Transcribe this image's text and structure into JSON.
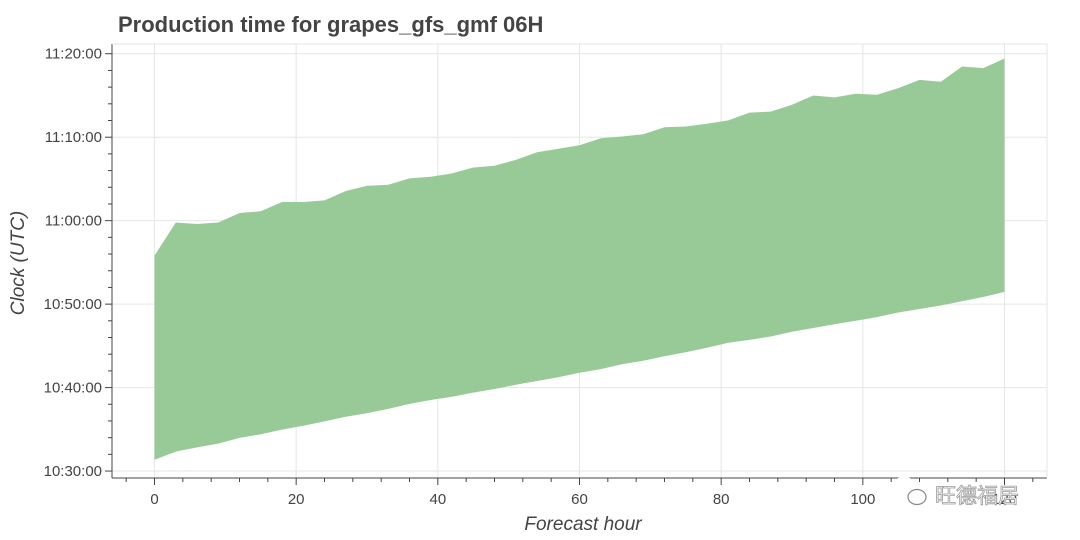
{
  "chart_data": {
    "type": "area",
    "title": "Production time for grapes_gfs_gmf 06H",
    "xlabel": "Forecast hour",
    "ylabel": "Clock (UTC)",
    "xlim": [
      -6,
      126
    ],
    "ylim": [
      "10:29:10",
      "11:21:10"
    ],
    "x_ticks": [
      0,
      20,
      40,
      60,
      80,
      100,
      120
    ],
    "x_tick_labels": [
      "0",
      "20",
      "40",
      "60",
      "80",
      "100",
      "120"
    ],
    "y_ticks": [
      "10:30:00",
      "10:40:00",
      "10:50:00",
      "11:00:00",
      "11:10:00",
      "11:20:00"
    ],
    "y_tick_labels": [
      "10:30:00",
      "10:40:00",
      "10:50:00",
      "11:00:00",
      "11:10:00",
      "11:20:00"
    ],
    "grid": true,
    "fill_color": "#98ca98",
    "series": [
      {
        "x": [
          0,
          3,
          6,
          9,
          12,
          15,
          18,
          21,
          24,
          27,
          30,
          33,
          36,
          39,
          42,
          45,
          48,
          51,
          54,
          57,
          60,
          63,
          66,
          69,
          72,
          75,
          78,
          81,
          84,
          87,
          90,
          93,
          96,
          99,
          102,
          105,
          108,
          111,
          114,
          117,
          120
        ],
        "upper": [
          "10:55:49",
          "10:59:47",
          "10:59:36",
          "10:59:47",
          "11:00:55",
          "11:01:07",
          "11:02:14",
          "11:02:14",
          "11:02:26",
          "11:03:33",
          "11:04:11",
          "11:04:18",
          "11:05:04",
          "11:05:15",
          "11:05:40",
          "11:06:22",
          "11:06:35",
          "11:07:17",
          "11:08:12",
          "11:08:37",
          "11:09:02",
          "11:09:52",
          "11:10:05",
          "11:10:21",
          "11:11:11",
          "11:11:17",
          "11:11:37",
          "11:12:01",
          "11:12:57",
          "11:13:04",
          "11:13:53",
          "11:15:00",
          "11:14:46",
          "11:15:12",
          "11:15:05",
          "11:15:53",
          "11:16:52",
          "11:16:39",
          "11:18:28",
          "11:18:17",
          "11:19:26"
        ],
        "lower": [
          "10:31:21",
          "10:32:20",
          "10:32:50",
          "10:33:17",
          "10:33:58",
          "10:34:25",
          "10:34:58",
          "10:35:25",
          "10:35:57",
          "10:36:30",
          "10:36:56",
          "10:37:27",
          "10:38:03",
          "10:38:31",
          "10:38:54",
          "10:39:24",
          "10:39:50",
          "10:40:20",
          "10:40:47",
          "10:41:14",
          "10:41:46",
          "10:42:13",
          "10:42:48",
          "10:43:13",
          "10:43:45",
          "10:44:14",
          "10:44:47",
          "10:45:22",
          "10:45:43",
          "10:46:07",
          "10:46:42",
          "10:47:08",
          "10:47:35",
          "10:48:01",
          "10:48:27",
          "10:49:00",
          "10:49:25",
          "10:49:50",
          "10:50:20",
          "10:50:51",
          "10:51:28"
        ]
      }
    ]
  },
  "watermark": {
    "text": "旺德福居",
    "icon": "wechat-icon"
  }
}
